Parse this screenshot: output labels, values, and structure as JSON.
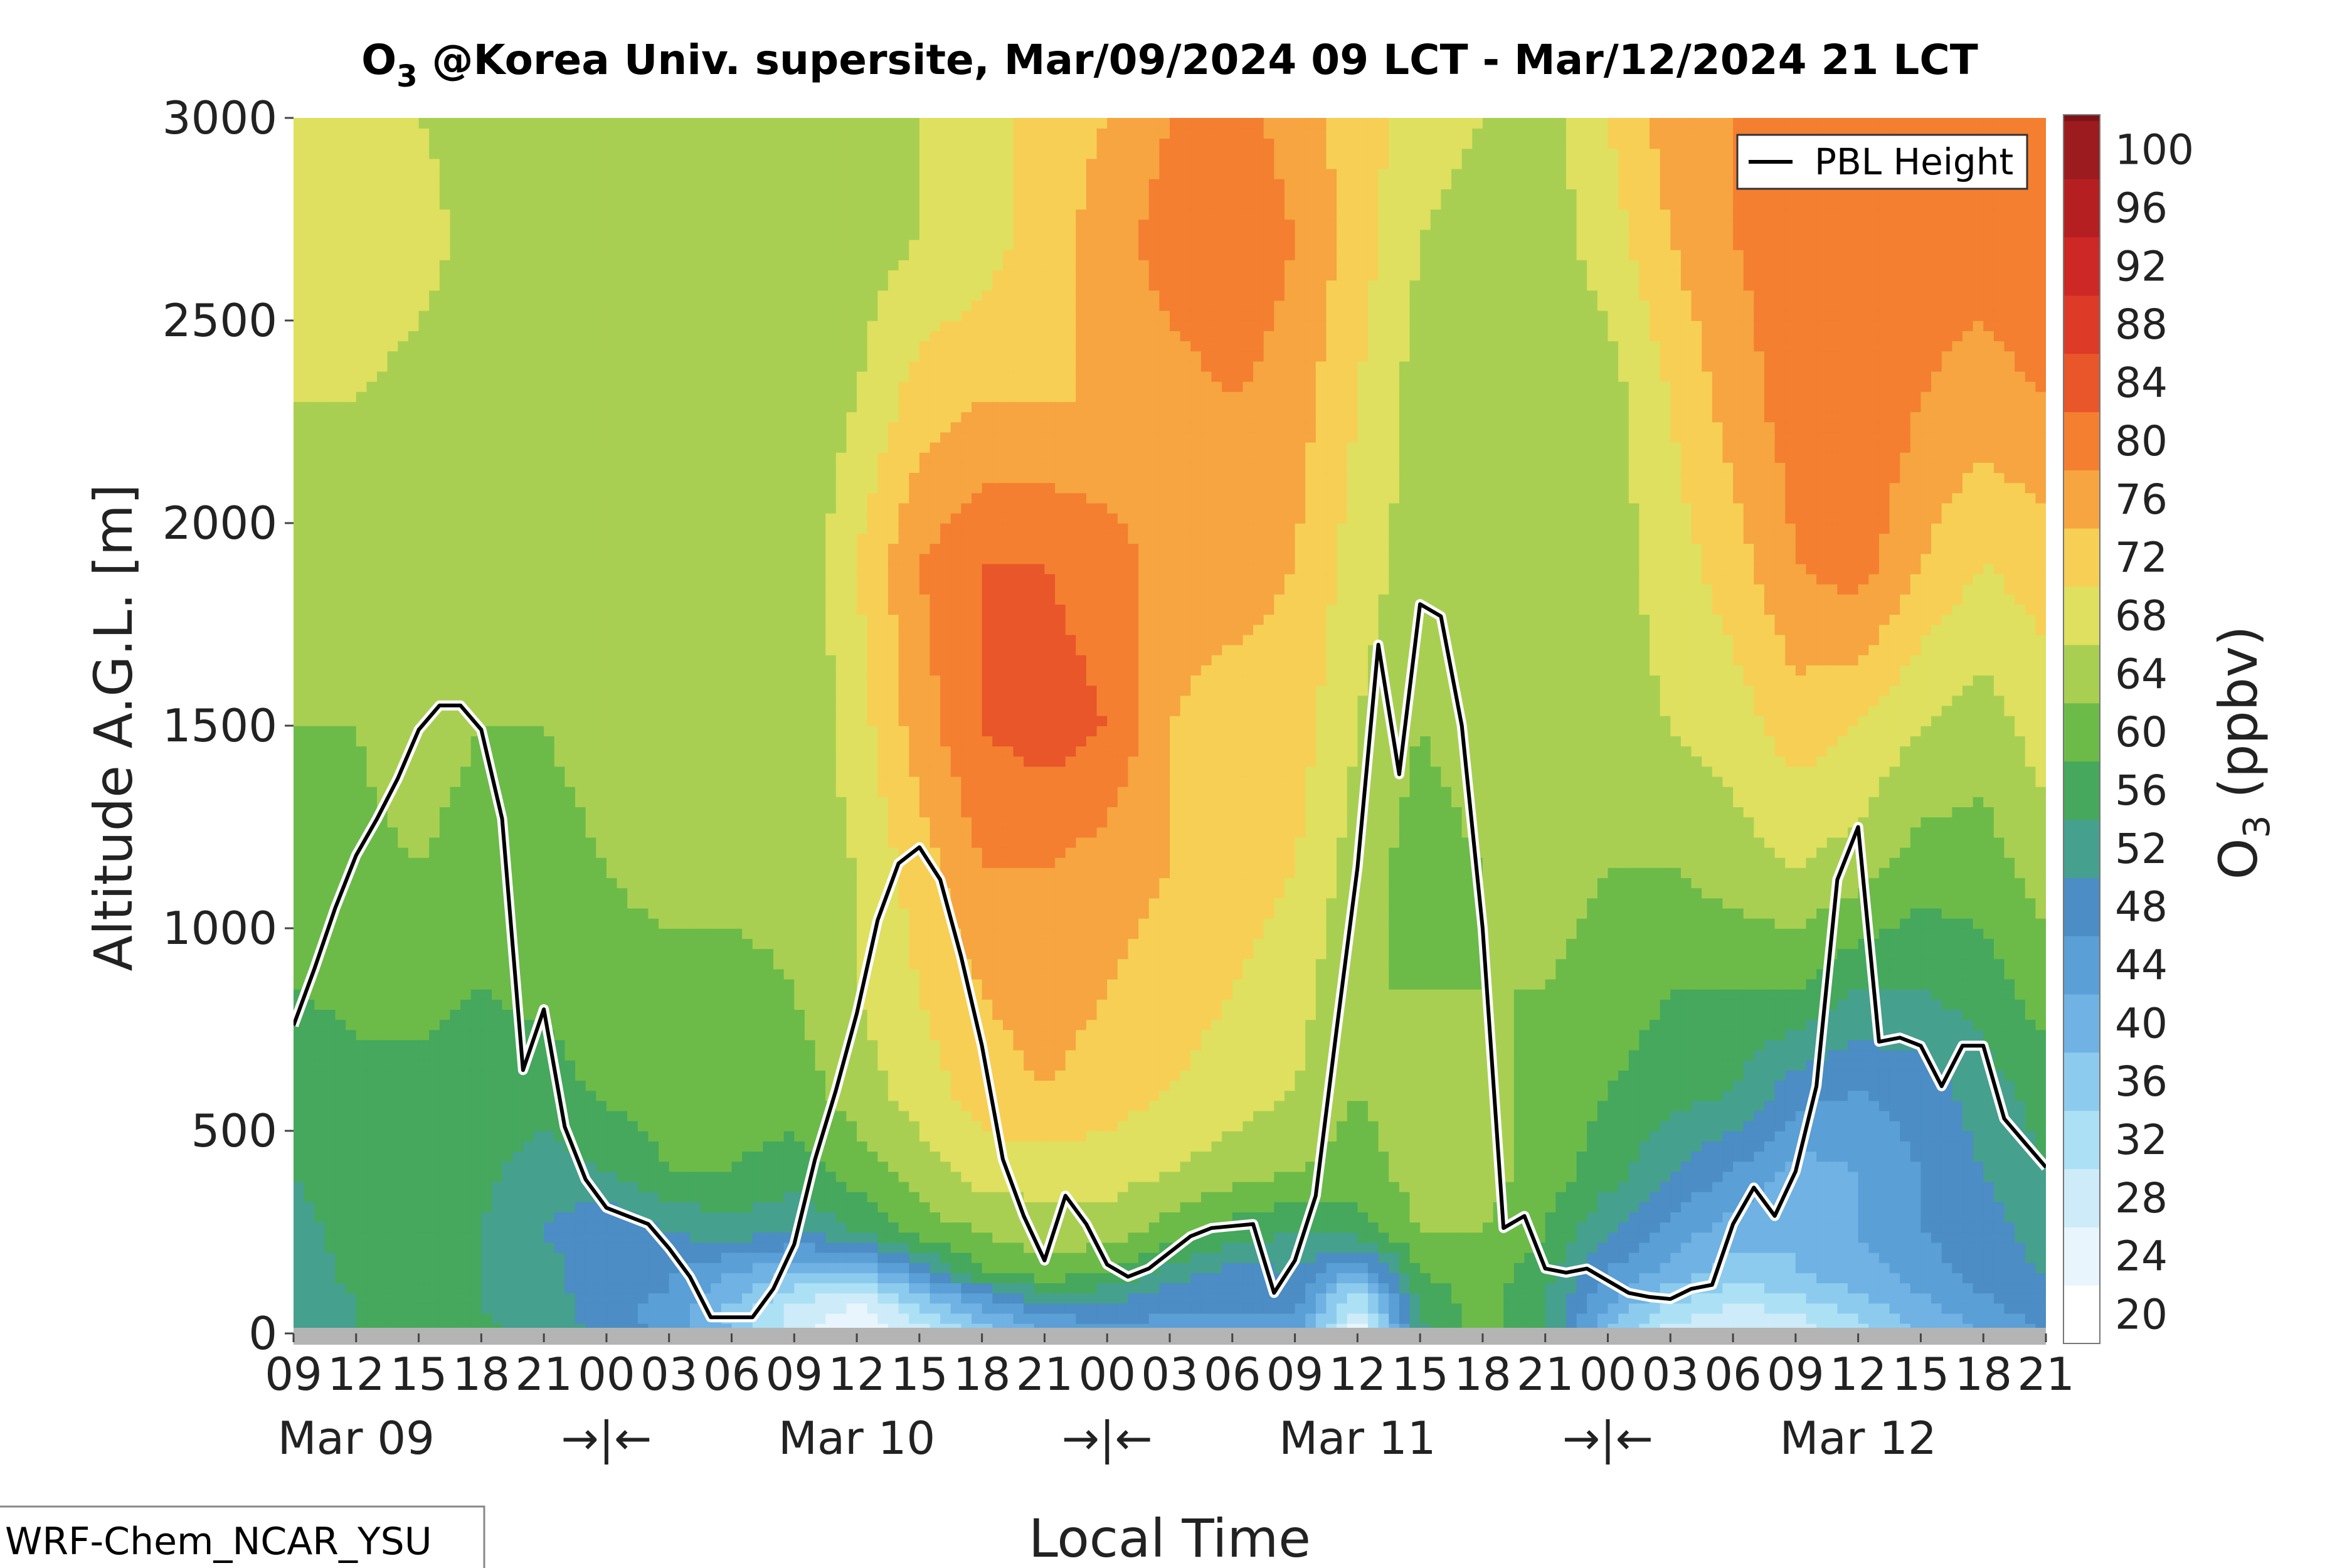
{
  "chart_data": {
    "type": "heatmap",
    "title_main": "O",
    "title_sub": "3",
    "title_rest": " @Korea Univ. supersite, Mar/09/2024 09 LCT - Mar/12/2024 21 LCT",
    "xlabel": "Local Time",
    "ylabel": "Altitude A.G.L. [m]",
    "colorbar_label_main": "O",
    "colorbar_label_sub": "3",
    "colorbar_label_rest": " (ppbv)",
    "ylim": [
      0,
      3000
    ],
    "yticks": [
      0,
      500,
      1000,
      1500,
      2000,
      2500,
      3000
    ],
    "xlim_hours": [
      0,
      84
    ],
    "x_hour_labels": [
      "09",
      "12",
      "15",
      "18",
      "21",
      "00",
      "03",
      "06",
      "09",
      "12",
      "15",
      "18",
      "21",
      "00",
      "03",
      "06",
      "09",
      "12",
      "15",
      "18",
      "21",
      "00",
      "03",
      "06",
      "09",
      "12",
      "15",
      "18",
      "21"
    ],
    "date_labels": [
      "Mar 09",
      "Mar 10",
      "Mar 11",
      "Mar 12"
    ],
    "date_label_hours": [
      3,
      27,
      51,
      75
    ],
    "night_markers": [
      "→|←",
      "→|←",
      "→|←"
    ],
    "night_marker_hours": [
      15,
      39,
      63
    ],
    "colorbar_levels": [
      20,
      24,
      28,
      32,
      36,
      40,
      44,
      48,
      52,
      56,
      60,
      64,
      68,
      72,
      76,
      80,
      84,
      88,
      92,
      96,
      100
    ],
    "colorbar_colors": [
      "#ffffff",
      "#e8f5fc",
      "#cdebf8",
      "#ace0f5",
      "#8dcbee",
      "#6fb2e3",
      "#5a9fd6",
      "#4b8dc4",
      "#46a08e",
      "#45a85c",
      "#6cbb49",
      "#a9cf52",
      "#dfe05f",
      "#f7cf55",
      "#f6a540",
      "#f47f30",
      "#e8562a",
      "#dd3a27",
      "#cd2826",
      "#b61f22",
      "#9b1b1e",
      "#7d1318"
    ],
    "legend": [
      "PBL Height"
    ],
    "legend_position": "top-right",
    "pbl_height": {
      "name": "PBL Height",
      "hours": [
        0,
        1,
        2,
        3,
        4,
        5,
        6,
        7,
        8,
        9,
        10,
        11,
        12,
        13,
        14,
        15,
        16,
        17,
        18,
        19,
        20,
        21,
        22,
        23,
        24,
        25,
        26,
        27,
        28,
        29,
        30,
        31,
        32,
        33,
        34,
        35,
        36,
        37,
        38,
        39,
        40,
        41,
        42,
        43,
        44,
        45,
        46,
        47,
        48,
        49,
        50,
        51,
        52,
        53,
        54,
        55,
        56,
        57,
        58,
        59,
        60,
        61,
        62,
        63,
        64,
        65,
        66,
        67,
        68,
        69,
        70,
        71,
        72,
        73,
        74,
        75,
        76,
        77,
        78,
        79,
        80,
        81,
        82,
        83,
        84
      ],
      "values": [
        760,
        900,
        1050,
        1180,
        1270,
        1370,
        1490,
        1550,
        1550,
        1490,
        1270,
        650,
        800,
        510,
        380,
        310,
        290,
        270,
        210,
        140,
        40,
        40,
        40,
        110,
        220,
        430,
        600,
        790,
        1020,
        1160,
        1200,
        1120,
        930,
        710,
        430,
        290,
        180,
        340,
        270,
        170,
        140,
        160,
        200,
        240,
        260,
        265,
        270,
        100,
        180,
        340,
        750,
        1150,
        1700,
        1380,
        1800,
        1770,
        1500,
        1000,
        260,
        290,
        160,
        150,
        160,
        130,
        100,
        90,
        85,
        110,
        120,
        270,
        360,
        290,
        400,
        610,
        1120,
        1250,
        720,
        730,
        710,
        610,
        710,
        710,
        530,
        470,
        410
      ]
    },
    "ozone_grid": {
      "hours": [
        0,
        3,
        6,
        9,
        12,
        15,
        18,
        21,
        24,
        27,
        30,
        33,
        36,
        39,
        42,
        45,
        48,
        51,
        54,
        57,
        60,
        63,
        66,
        69,
        72,
        75,
        78,
        81,
        84
      ],
      "altitudes": [
        0,
        50,
        100,
        150,
        250,
        400,
        600,
        850,
        1150,
        1500,
        1900,
        2300,
        2700,
        3000
      ],
      "values": [
        [
          50,
          52,
          52,
          53,
          51,
          47,
          43,
          36,
          26,
          20,
          26,
          34,
          40,
          42,
          42,
          42,
          42,
          20,
          50,
          58,
          52,
          36,
          26,
          24,
          26,
          30,
          36,
          40,
          44
        ],
        [
          50,
          52,
          52,
          52,
          50,
          46,
          42,
          34,
          26,
          22,
          30,
          38,
          44,
          46,
          44,
          44,
          44,
          26,
          52,
          58,
          52,
          38,
          30,
          26,
          28,
          32,
          38,
          42,
          46
        ],
        [
          50,
          52,
          52,
          52,
          50,
          45,
          44,
          38,
          30,
          26,
          36,
          44,
          52,
          50,
          46,
          44,
          46,
          30,
          54,
          58,
          52,
          42,
          34,
          30,
          32,
          36,
          40,
          44,
          48
        ],
        [
          50,
          53,
          52,
          52,
          50,
          45,
          44,
          40,
          36,
          34,
          44,
          56,
          58,
          56,
          50,
          46,
          48,
          38,
          56,
          58,
          54,
          44,
          38,
          34,
          36,
          38,
          42,
          46,
          48
        ],
        [
          51,
          53,
          53,
          52,
          48,
          44,
          48,
          50,
          48,
          52,
          58,
          60,
          62,
          62,
          58,
          54,
          52,
          54,
          60,
          60,
          56,
          48,
          42,
          38,
          36,
          40,
          44,
          46,
          50
        ],
        [
          52,
          54,
          54,
          53,
          50,
          52,
          56,
          56,
          54,
          58,
          62,
          66,
          66,
          66,
          64,
          62,
          60,
          58,
          62,
          62,
          58,
          54,
          48,
          44,
          38,
          40,
          44,
          48,
          52
        ],
        [
          53,
          55,
          55,
          54,
          54,
          57,
          58,
          58,
          58,
          62,
          66,
          70,
          72,
          70,
          68,
          66,
          64,
          60,
          62,
          62,
          58,
          56,
          54,
          52,
          46,
          44,
          46,
          50,
          54
        ],
        [
          56,
          57,
          57,
          56,
          57,
          58,
          58,
          58,
          60,
          64,
          68,
          72,
          74,
          72,
          70,
          68,
          66,
          60,
          60,
          60,
          60,
          58,
          56,
          56,
          56,
          52,
          52,
          54,
          58
        ],
        [
          58,
          59,
          60,
          58,
          58,
          60,
          62,
          62,
          62,
          64,
          70,
          76,
          76,
          74,
          72,
          70,
          68,
          62,
          58,
          60,
          62,
          60,
          60,
          62,
          64,
          62,
          58,
          58,
          62
        ],
        [
          60,
          60,
          62,
          60,
          60,
          62,
          62,
          62,
          60,
          66,
          74,
          80,
          82,
          80,
          72,
          70,
          70,
          64,
          60,
          62,
          64,
          62,
          64,
          66,
          70,
          68,
          64,
          62,
          66
        ],
        [
          62,
          62,
          62,
          62,
          62,
          62,
          62,
          62,
          60,
          68,
          76,
          80,
          80,
          78,
          74,
          74,
          72,
          66,
          62,
          62,
          64,
          62,
          66,
          70,
          76,
          78,
          72,
          68,
          70
        ],
        [
          64,
          64,
          62,
          62,
          62,
          62,
          62,
          62,
          60,
          64,
          70,
          72,
          72,
          72,
          74,
          76,
          74,
          68,
          62,
          62,
          62,
          62,
          68,
          74,
          78,
          80,
          76,
          74,
          76
        ],
        [
          66,
          68,
          66,
          62,
          62,
          62,
          62,
          62,
          60,
          62,
          64,
          66,
          70,
          74,
          78,
          80,
          76,
          70,
          64,
          62,
          62,
          66,
          72,
          76,
          78,
          78,
          78,
          78,
          80
        ],
        [
          66,
          68,
          64,
          62,
          62,
          62,
          62,
          62,
          62,
          62,
          64,
          66,
          70,
          72,
          76,
          78,
          74,
          70,
          66,
          64,
          62,
          68,
          74,
          76,
          76,
          76,
          76,
          76,
          78
        ]
      ]
    }
  },
  "credit": "WRF-Chem_NCAR_YSU"
}
